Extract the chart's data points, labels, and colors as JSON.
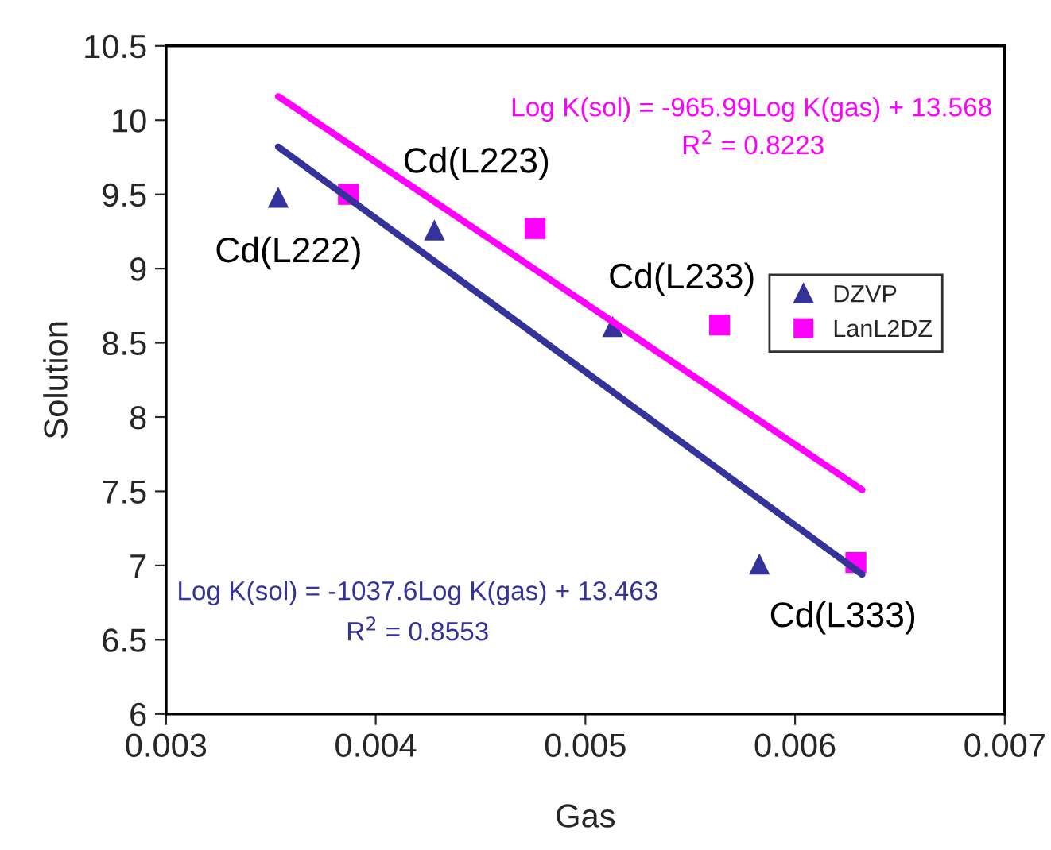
{
  "chart_data": {
    "type": "scatter",
    "xlabel": "Gas",
    "ylabel": "Solution",
    "xlim": [
      0.003,
      0.007
    ],
    "xticks": [
      0.003,
      0.004,
      0.005,
      0.006,
      0.007
    ],
    "ylim": [
      6,
      10.5
    ],
    "yticks": [
      6,
      6.5,
      7,
      7.5,
      8,
      8.5,
      9,
      9.5,
      10,
      10.5
    ],
    "grid": false,
    "legend": "right",
    "series": [
      {
        "name": "DZVP",
        "marker": "triangle",
        "color": "#333399",
        "x": [
          0.003535,
          0.00428,
          0.00513,
          0.00583
        ],
        "values": [
          9.48,
          9.26,
          8.61,
          7.01
        ]
      },
      {
        "name": "LanL2DZ",
        "marker": "square",
        "color": "#ff00ff",
        "x": [
          0.00387,
          0.00476,
          0.00564,
          0.00629
        ],
        "values": [
          9.5,
          9.27,
          8.62,
          7.02
        ]
      },
      {
        "type": "line",
        "color": "#333399",
        "x": [
          0.003535,
          0.00632
        ],
        "values": [
          9.82,
          6.94
        ]
      },
      {
        "type": "line",
        "color": "#ff00ff",
        "x": [
          0.003535,
          0.00632
        ],
        "values": [
          10.16,
          7.51
        ]
      }
    ],
    "annotations": [
      "Cd(L222)",
      "Cd(L223)",
      "Cd(L233)",
      "Cd(L333)",
      "Log K(sol) = -965.99Log K(gas) + 13.568",
      "R$^{2}$ = 0.8223",
      "Log K(sol) = -1037.6Log K(gas) + 13.463",
      "R$^{2}$ = 0.8553"
    ]
  }
}
